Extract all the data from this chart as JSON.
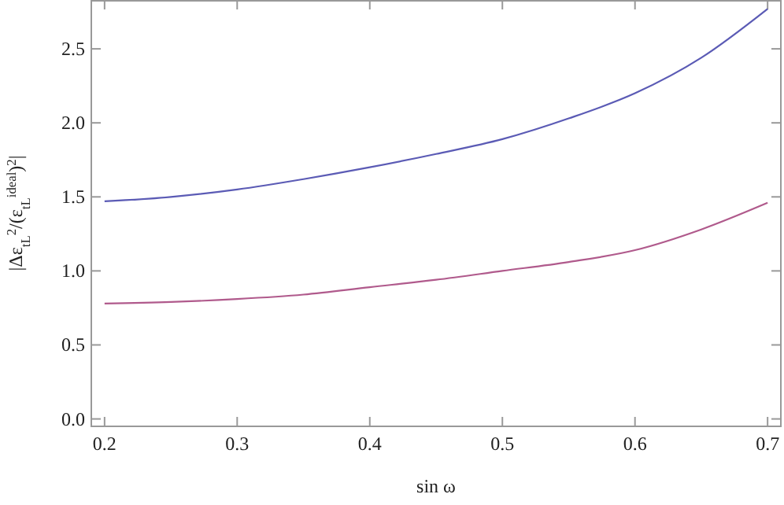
{
  "chart_data": {
    "type": "line",
    "xlabel": "sin ω",
    "ylabel": "|Δε$_{tL}$$^{2}$/(ε$_{tL}$$^{ideal}$)$^{2}$|",
    "x": [
      0.2,
      0.25,
      0.3,
      0.35,
      0.4,
      0.45,
      0.5,
      0.55,
      0.6,
      0.65,
      0.7
    ],
    "series": [
      {
        "color": "#5b5bb5",
        "values": [
          1.47,
          1.5,
          1.55,
          1.62,
          1.7,
          1.79,
          1.89,
          2.03,
          2.2,
          2.44,
          2.77
        ]
      },
      {
        "color": "#b05a8c",
        "values": [
          0.78,
          0.79,
          0.81,
          0.84,
          0.89,
          0.94,
          1.0,
          1.06,
          1.14,
          1.28,
          1.46
        ]
      }
    ],
    "xlim": [
      0.19,
      0.71
    ],
    "ylim": [
      -0.05,
      2.83
    ],
    "xticks": [
      0.2,
      0.3,
      0.4,
      0.5,
      0.6,
      0.7
    ],
    "yticks": [
      {
        "value": 0,
        "label": "0.0"
      },
      0.5,
      {
        "value": 1,
        "label": "1.0"
      },
      1.5,
      {
        "value": 2,
        "label": "2.0"
      },
      2.5
    ],
    "grid": false,
    "line_style": "solid",
    "marker": "none"
  }
}
